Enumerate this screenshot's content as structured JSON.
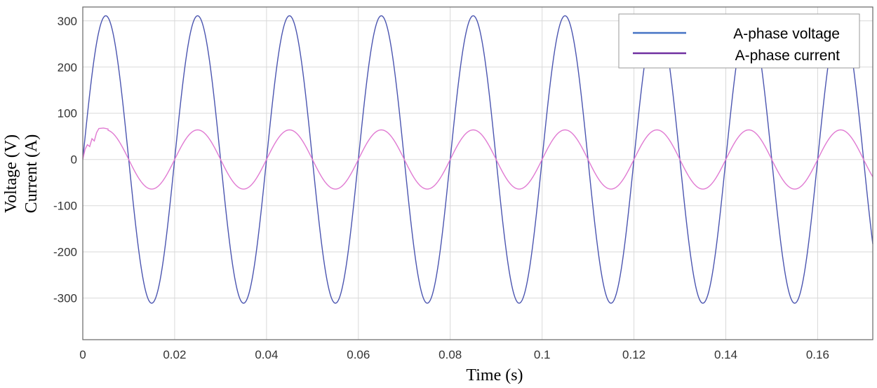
{
  "chart_data": {
    "type": "line",
    "xlabel": "Time (s)",
    "ylabel_lines": [
      "Voltage (V)",
      "Current (A)"
    ],
    "xlim": [
      0,
      0.172
    ],
    "ylim": [
      -390,
      330
    ],
    "xticks": [
      0,
      0.02,
      0.04,
      0.06,
      0.08,
      0.1,
      0.12,
      0.14,
      0.16
    ],
    "xtick_labels": [
      "0",
      "0.02",
      "0.04",
      "0.06",
      "0.08",
      "0.1",
      "0.12",
      "0.14",
      "0.16"
    ],
    "yticks": [
      300,
      200,
      100,
      0,
      -100,
      -200,
      -300
    ],
    "ytick_labels": [
      "300",
      "200",
      "100",
      "0",
      "-100",
      "-200",
      "-300"
    ],
    "grid": true,
    "legend_position": "top-right",
    "series": [
      {
        "name": "A-phase voltage",
        "color": "#4b55b0",
        "legend_color": "#4472c4",
        "waveform": "sine",
        "amplitude": 311,
        "frequency_hz": 50,
        "phase_deg": 0
      },
      {
        "name": "A-phase current",
        "color": "#e07ad2",
        "legend_color": "#7030a0",
        "waveform": "sine",
        "amplitude": 64,
        "frequency_hz": 50,
        "phase_deg": 0,
        "startup_points": [
          [
            0,
            0
          ],
          [
            0.0005,
            22
          ],
          [
            0.001,
            32
          ],
          [
            0.0015,
            28
          ],
          [
            0.002,
            45
          ],
          [
            0.0025,
            40
          ],
          [
            0.003,
            58
          ],
          [
            0.0035,
            67
          ],
          [
            0.0045,
            68
          ],
          [
            0.0055,
            66
          ]
        ]
      }
    ]
  }
}
